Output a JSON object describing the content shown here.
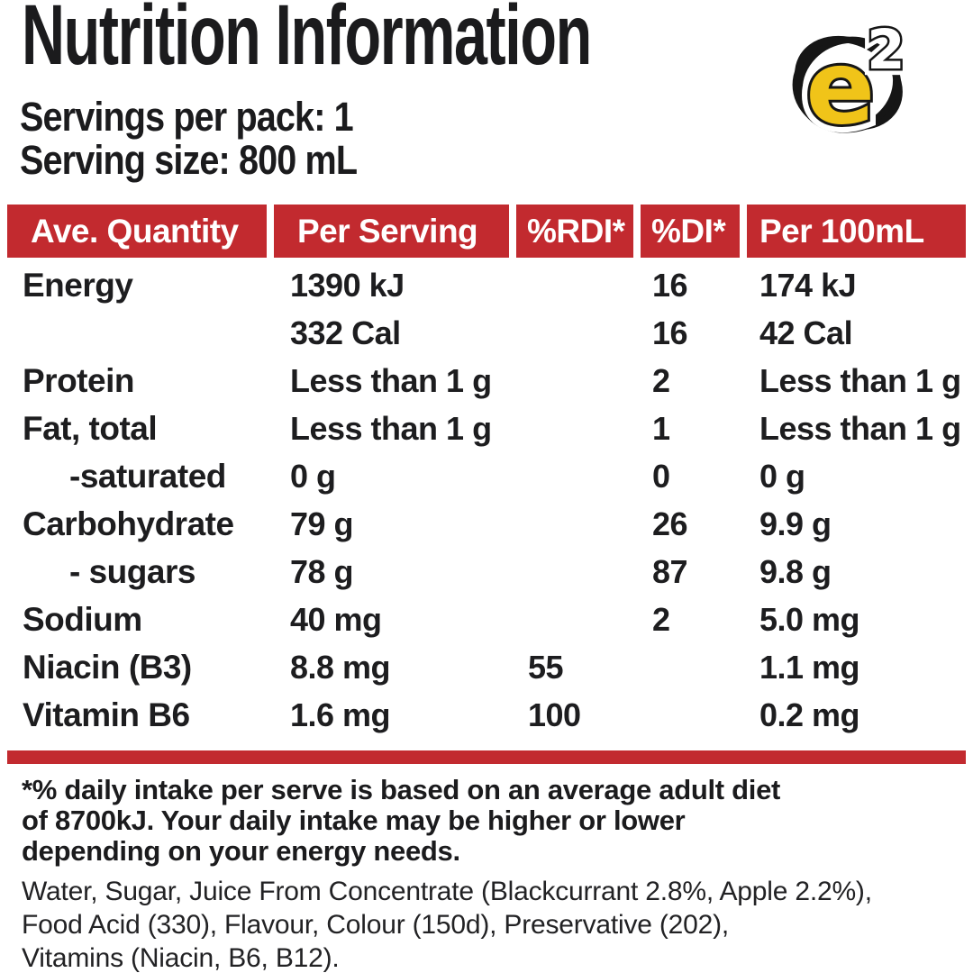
{
  "title": "Nutrition Information",
  "logo": {
    "letter": "e",
    "exponent": "2",
    "yellow": "#F0C419",
    "outline": "#161616"
  },
  "serving_info": {
    "servings_per_pack": "Servings per pack: 1",
    "serving_size": "Serving size: 800 mL"
  },
  "colors": {
    "header_red": "#C22A2F",
    "text_black": "#1D1D1F"
  },
  "table": {
    "headers": [
      "Ave. Quantity",
      "Per Serving",
      "%RDI*",
      "%DI*",
      "Per 100mL"
    ],
    "rows": [
      {
        "label": "Energy",
        "indent": false,
        "per_serving": "1390 kJ",
        "rdi": "",
        "di": "16",
        "per_100ml": "174 kJ"
      },
      {
        "label": "",
        "indent": false,
        "per_serving": "332 Cal",
        "rdi": "",
        "di": "16",
        "per_100ml": "42 Cal"
      },
      {
        "label": "Protein",
        "indent": false,
        "per_serving": "Less than 1 g",
        "rdi": "",
        "di": "2",
        "per_100ml": "Less than 1 g"
      },
      {
        "label": "Fat, total",
        "indent": false,
        "per_serving": "Less than 1 g",
        "rdi": "",
        "di": "1",
        "per_100ml": "Less than 1 g"
      },
      {
        "label": "-saturated",
        "indent": true,
        "per_serving": "0 g",
        "rdi": "",
        "di": "0",
        "per_100ml": "0 g"
      },
      {
        "label": "Carbohydrate",
        "indent": false,
        "per_serving": "79 g",
        "rdi": "",
        "di": "26",
        "per_100ml": "9.9 g"
      },
      {
        "label": "- sugars",
        "indent": true,
        "per_serving": "78 g",
        "rdi": "",
        "di": "87",
        "per_100ml": "9.8 g"
      },
      {
        "label": "Sodium",
        "indent": false,
        "per_serving": "40 mg",
        "rdi": "",
        "di": "2",
        "per_100ml": "5.0 mg"
      },
      {
        "label": "Niacin (B3)",
        "indent": false,
        "per_serving": "8.8 mg",
        "rdi": "55",
        "di": "",
        "per_100ml": "1.1 mg"
      },
      {
        "label": "Vitamin B6",
        "indent": false,
        "per_serving": "1.6 mg",
        "rdi": "100",
        "di": "",
        "per_100ml": "0.2 mg"
      }
    ]
  },
  "footnote": {
    "lines": [
      "*% daily intake per serve is based on an average adult diet",
      "of 8700kJ. Your daily intake may be higher or lower",
      "depending on your energy needs."
    ]
  },
  "ingredients": {
    "lines": [
      "Water, Sugar, Juice From Concentrate (Blackcurrant 2.8%, Apple 2.2%),",
      "Food Acid (330), Flavour, Colour (150d), Preservative (202),",
      "Vitamins (Niacin, B6, B12)."
    ]
  }
}
